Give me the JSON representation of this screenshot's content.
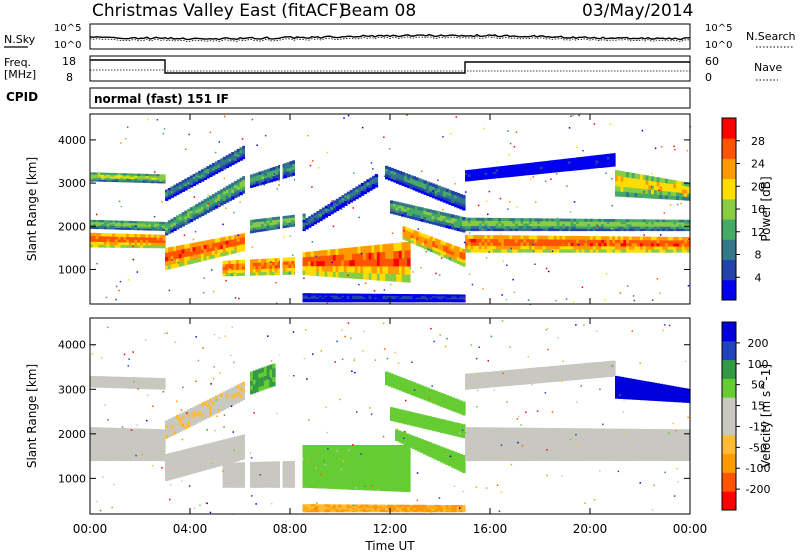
{
  "header": {
    "title": "Christmas Valley East (fitACF)",
    "beam": "Beam 08",
    "date": "03/May/2014"
  },
  "top_panels": {
    "nsky_label": "N.Sky",
    "nsky_ticks": [
      "10^5",
      "10^0"
    ],
    "nsearch_label": "N.Search",
    "nsearch_ticks": [
      "10^5",
      "10^0"
    ],
    "freq_label": "Freq.",
    "freq_unit": "[MHz]",
    "freq_ticks": [
      "18",
      "8"
    ],
    "nave_label": "Nave",
    "nave_ticks": [
      "60",
      "0"
    ],
    "cpid_label": "CPID",
    "cpid_value": "normal (fast) 151 IF"
  },
  "colors": {
    "power_scale": [
      "#0000ee",
      "#2244aa",
      "#337788",
      "#44aa66",
      "#88cc44",
      "#ffdd00",
      "#ff9900",
      "#ff5500",
      "#ff0000"
    ],
    "velocity_scale": [
      "#ff0000",
      "#ff5500",
      "#ff9900",
      "#ffbb33",
      "#c8c8c0",
      "#c8c8c0",
      "#66cc33",
      "#339944",
      "#2244bb",
      "#0000dd"
    ],
    "ground_scatter": "#c0c0b8"
  },
  "chart_data": [
    {
      "type": "heatmap",
      "name_key": "power",
      "ylabel": "Slant Range [km]",
      "ylim": [
        200,
        4600
      ],
      "yticks": [
        "1000",
        "2000",
        "3000",
        "4000"
      ],
      "xlim": [
        0,
        24
      ],
      "colorbar": {
        "label": "Power [dB]",
        "ticks": [
          "4",
          "8",
          "12",
          "16",
          "20",
          "24",
          "28"
        ],
        "range": [
          0,
          32
        ]
      },
      "bands": [
        {
          "t": [
            0,
            3
          ],
          "r0": [
            1520,
            1500
          ],
          "r1": [
            1850,
            1800
          ],
          "level": 0.88
        },
        {
          "t": [
            0,
            3
          ],
          "r0": [
            1950,
            1900
          ],
          "r1": [
            2150,
            2100
          ],
          "level": 0.55
        },
        {
          "t": [
            0,
            3
          ],
          "r0": [
            3050,
            3000
          ],
          "r1": [
            3250,
            3200
          ],
          "level": 0.6
        },
        {
          "t": [
            3,
            6.2
          ],
          "r0": [
            1000,
            1450
          ],
          "r1": [
            1500,
            1850
          ],
          "level": 0.9
        },
        {
          "t": [
            3,
            6.2
          ],
          "r0": [
            1800,
            2800
          ],
          "r1": [
            2100,
            3200
          ],
          "level": 0.5
        },
        {
          "t": [
            3,
            6.2
          ],
          "r0": [
            2600,
            3600
          ],
          "r1": [
            2850,
            3900
          ],
          "level": 0.4
        },
        {
          "t": [
            5.3,
            8.6
          ],
          "r0": [
            850,
            900
          ],
          "r1": [
            1200,
            1300
          ],
          "level": 0.85
        },
        {
          "t": [
            6.4,
            8.6
          ],
          "r0": [
            1850,
            2050
          ],
          "r1": [
            2150,
            2300
          ],
          "level": 0.55
        },
        {
          "t": [
            6.4,
            8.2
          ],
          "r0": [
            2900,
            3200
          ],
          "r1": [
            3200,
            3550
          ],
          "level": 0.45
        },
        {
          "t": [
            8.5,
            12.8
          ],
          "r0": [
            880,
            700
          ],
          "r1": [
            1400,
            1650
          ],
          "level": 0.9
        },
        {
          "t": [
            8.5,
            11.5
          ],
          "r0": [
            1900,
            2950
          ],
          "r1": [
            2150,
            3250
          ],
          "level": 0.35
        },
        {
          "t": [
            12.5,
            15
          ],
          "r0": [
            1700,
            1050
          ],
          "r1": [
            2000,
            1450
          ],
          "level": 0.85
        },
        {
          "t": [
            12,
            15
          ],
          "r0": [
            2300,
            1850
          ],
          "r1": [
            2600,
            2200
          ],
          "level": 0.5
        },
        {
          "t": [
            11.8,
            15
          ],
          "r0": [
            3100,
            2350
          ],
          "r1": [
            3400,
            2700
          ],
          "level": 0.4
        },
        {
          "t": [
            15,
            24
          ],
          "r0": [
            1400,
            1400
          ],
          "r1": [
            1800,
            1750
          ],
          "level": 0.9
        },
        {
          "t": [
            15,
            24
          ],
          "r0": [
            1900,
            1900
          ],
          "r1": [
            2200,
            2150
          ],
          "level": 0.55
        },
        {
          "t": [
            15,
            21
          ],
          "r0": [
            3050,
            3400
          ],
          "r1": [
            3300,
            3700
          ],
          "level": 0.12
        },
        {
          "t": [
            21,
            24
          ],
          "r0": [
            2700,
            2600
          ],
          "r1": [
            3300,
            3000
          ],
          "level": 0.7
        },
        {
          "t": [
            8.5,
            15
          ],
          "r0": [
            250,
            250
          ],
          "r1": [
            450,
            420
          ],
          "level": 0.2
        }
      ]
    },
    {
      "type": "heatmap",
      "name_key": "velocity",
      "ylabel": "Slant Range [km]",
      "ylim": [
        200,
        4600
      ],
      "yticks": [
        "1000",
        "2000",
        "3000",
        "4000"
      ],
      "xlim": [
        0,
        24
      ],
      "xticks": [
        "00:00",
        "04:00",
        "08:00",
        "12:00",
        "16:00",
        "20:00",
        "00:00"
      ],
      "xlabel": "Time UT",
      "colorbar": {
        "label": "Velocity [m s^-1]",
        "ticks": [
          "-200",
          "-100",
          "-50",
          "-15",
          "15",
          "50",
          "100",
          "200"
        ],
        "range": [
          -250,
          250
        ]
      },
      "bands": [
        {
          "t": [
            0,
            3
          ],
          "r0": [
            1400,
            1400
          ],
          "r1": [
            2150,
            2100
          ],
          "level": 0.5
        },
        {
          "t": [
            0,
            3
          ],
          "r0": [
            3050,
            3000
          ],
          "r1": [
            3300,
            3250
          ],
          "level": 0.5
        },
        {
          "t": [
            3,
            6.2
          ],
          "r0": [
            950,
            1450
          ],
          "r1": [
            1550,
            2000
          ],
          "level": 0.5
        },
        {
          "t": [
            3,
            6.2
          ],
          "r0": [
            1900,
            2800
          ],
          "r1": [
            2300,
            3200
          ],
          "level": 0.42
        },
        {
          "t": [
            5.3,
            8.6
          ],
          "r0": [
            800,
            800
          ],
          "r1": [
            1350,
            1400
          ],
          "level": 0.5
        },
        {
          "t": [
            6.4,
            7.4
          ],
          "r0": [
            2900,
            3100
          ],
          "r1": [
            3400,
            3600
          ],
          "level": 0.7
        },
        {
          "t": [
            8.5,
            12.8
          ],
          "r0": [
            800,
            700
          ],
          "r1": [
            1750,
            1750
          ],
          "level": 0.65
        },
        {
          "t": [
            12.2,
            15
          ],
          "r0": [
            1850,
            1100
          ],
          "r1": [
            2100,
            1500
          ],
          "level": 0.65
        },
        {
          "t": [
            12,
            15
          ],
          "r0": [
            2300,
            1900
          ],
          "r1": [
            2600,
            2200
          ],
          "level": 0.65
        },
        {
          "t": [
            11.8,
            15
          ],
          "r0": [
            3100,
            2400
          ],
          "r1": [
            3400,
            2700
          ],
          "level": 0.65
        },
        {
          "t": [
            15,
            24
          ],
          "r0": [
            1400,
            1400
          ],
          "r1": [
            2150,
            2100
          ],
          "level": 0.5
        },
        {
          "t": [
            15,
            21
          ],
          "r0": [
            3000,
            3300
          ],
          "r1": [
            3350,
            3650
          ],
          "level": 0.5
        },
        {
          "t": [
            21,
            24
          ],
          "r0": [
            2800,
            2700
          ],
          "r1": [
            3300,
            3000
          ],
          "level": 0.95
        },
        {
          "t": [
            8.5,
            15
          ],
          "r0": [
            250,
            250
          ],
          "r1": [
            420,
            400
          ],
          "level": 0.3
        }
      ]
    }
  ]
}
